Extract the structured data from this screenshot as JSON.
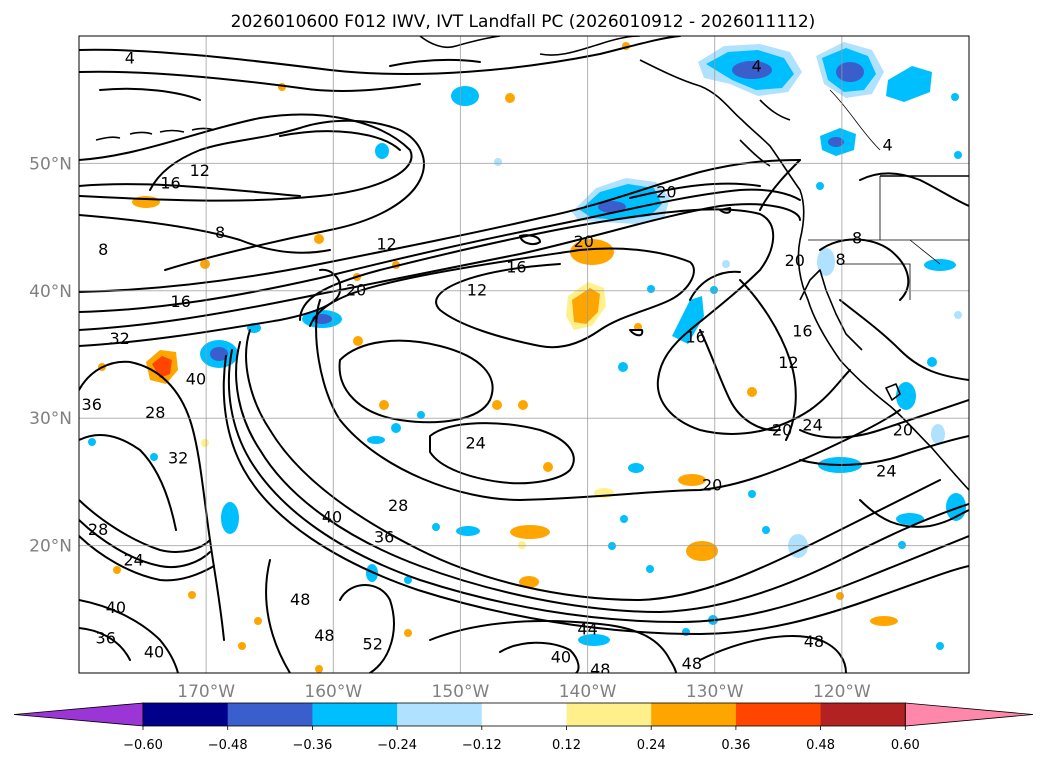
{
  "title": "2026010600 F012 IWV, IVT Landfall PC (2026010912 - 2026011112)",
  "map": {
    "lon_min": -180,
    "lon_max": -110,
    "lat_min": 10,
    "lat_max": 60,
    "lon_ticks": [
      {
        "lon": -170,
        "label": "170°W"
      },
      {
        "lon": -160,
        "label": "160°W"
      },
      {
        "lon": -150,
        "label": "150°W"
      },
      {
        "lon": -140,
        "label": "140°W"
      },
      {
        "lon": -130,
        "label": "130°W"
      },
      {
        "lon": -120,
        "label": "120°W"
      }
    ],
    "lat_ticks": [
      {
        "lat": 20,
        "label": "20°N"
      },
      {
        "lat": 30,
        "label": "30°N"
      },
      {
        "lat": 40,
        "label": "40°N"
      },
      {
        "lat": 50,
        "label": "50°N"
      }
    ],
    "contour_labels": [
      {
        "text": "4",
        "lon": -176,
        "lat": 58.3
      },
      {
        "text": "12",
        "lon": -170.5,
        "lat": 49.5
      },
      {
        "text": "16",
        "lon": -172.8,
        "lat": 48.5
      },
      {
        "text": "8",
        "lon": -168.9,
        "lat": 44.6
      },
      {
        "text": "8",
        "lon": -178.1,
        "lat": 43.3
      },
      {
        "text": "16",
        "lon": -172,
        "lat": 39.2
      },
      {
        "text": "12",
        "lon": -155.8,
        "lat": 43.7
      },
      {
        "text": "20",
        "lon": -158.2,
        "lat": 40.1
      },
      {
        "text": "16",
        "lon": -145.6,
        "lat": 41.9
      },
      {
        "text": "12",
        "lon": -148.7,
        "lat": 40.1
      },
      {
        "text": "20",
        "lon": -140.3,
        "lat": 43.9
      },
      {
        "text": "20",
        "lon": -133.8,
        "lat": 47.8
      },
      {
        "text": "20",
        "lon": -123.7,
        "lat": 42.4
      },
      {
        "text": "16",
        "lon": -131.5,
        "lat": 36.4
      },
      {
        "text": "16",
        "lon": -123.1,
        "lat": 36.9
      },
      {
        "text": "12",
        "lon": -124.2,
        "lat": 34.4
      },
      {
        "text": "20",
        "lon": -124.7,
        "lat": 29.1
      },
      {
        "text": "24",
        "lon": -122.3,
        "lat": 29.5
      },
      {
        "text": "24",
        "lon": -148.8,
        "lat": 28.1
      },
      {
        "text": "20",
        "lon": -130.2,
        "lat": 24.8
      },
      {
        "text": "24",
        "lon": -116.5,
        "lat": 25.9
      },
      {
        "text": "20",
        "lon": -115.2,
        "lat": 29.1
      },
      {
        "text": "8",
        "lon": -118.8,
        "lat": 44.2
      },
      {
        "text": "8",
        "lon": -120.1,
        "lat": 42.5
      },
      {
        "text": "4",
        "lon": -116.4,
        "lat": 51.5
      },
      {
        "text": "4",
        "lon": -126.7,
        "lat": 57.7
      },
      {
        "text": "32",
        "lon": -176.8,
        "lat": 36.3
      },
      {
        "text": "36",
        "lon": -179,
        "lat": 31.1
      },
      {
        "text": "40",
        "lon": -170.8,
        "lat": 33.1
      },
      {
        "text": "28",
        "lon": -174,
        "lat": 30.5
      },
      {
        "text": "32",
        "lon": -172.2,
        "lat": 26.9
      },
      {
        "text": "28",
        "lon": -178.5,
        "lat": 21.3
      },
      {
        "text": "24",
        "lon": -175.7,
        "lat": 18.9
      },
      {
        "text": "40",
        "lon": -177.1,
        "lat": 15.2
      },
      {
        "text": "36",
        "lon": -177.9,
        "lat": 12.8
      },
      {
        "text": "40",
        "lon": -174.1,
        "lat": 11.7
      },
      {
        "text": "48",
        "lon": -162.6,
        "lat": 15.8
      },
      {
        "text": "48",
        "lon": -160.7,
        "lat": 13.0
      },
      {
        "text": "52",
        "lon": -156.9,
        "lat": 12.3
      },
      {
        "text": "28",
        "lon": -154.9,
        "lat": 23.2
      },
      {
        "text": "40",
        "lon": -160.1,
        "lat": 22.3
      },
      {
        "text": "36",
        "lon": -156,
        "lat": 20.7
      },
      {
        "text": "44",
        "lon": -140,
        "lat": 13.5
      },
      {
        "text": "40",
        "lon": -142.1,
        "lat": 11.3
      },
      {
        "text": "48",
        "lon": -139,
        "lat": 10.3
      },
      {
        "text": "48",
        "lon": -131.8,
        "lat": 10.8
      },
      {
        "text": "48",
        "lon": -122.2,
        "lat": 12.5
      }
    ]
  },
  "colorbar": {
    "colors": [
      "#9c35d5",
      "#00008b",
      "#3a5fcd",
      "#00bfff",
      "#b0e2ff",
      "#ffffff",
      "#fff08c",
      "#ffa500",
      "#ff4500",
      "#b22222",
      "#ff88aa"
    ],
    "labels": [
      "−0.60",
      "−0.48",
      "−0.36",
      "−0.24",
      "−0.12",
      "0.12",
      "0.24",
      "0.36",
      "0.48",
      "0.60"
    ],
    "values": [
      -0.6,
      -0.48,
      -0.36,
      -0.24,
      -0.12,
      0.12,
      0.24,
      0.36,
      0.48,
      0.6
    ]
  }
}
